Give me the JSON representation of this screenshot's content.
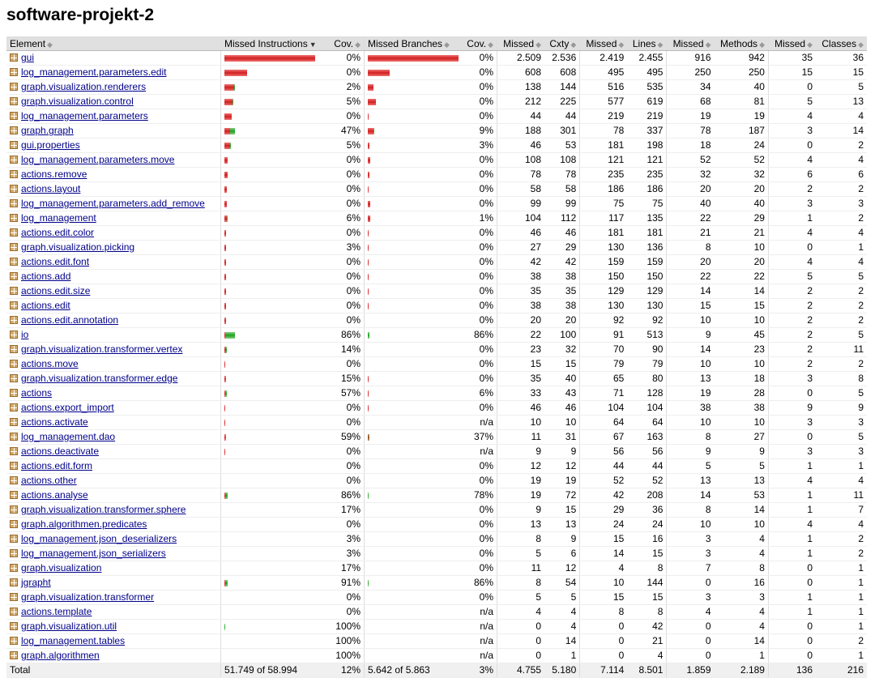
{
  "title": "software-projekt-2",
  "headers": [
    "Element",
    "Missed Instructions",
    "Cov.",
    "Missed Branches",
    "Cov.",
    "Missed",
    "Cxty",
    "Missed",
    "Lines",
    "Missed",
    "Methods",
    "Missed",
    "Classes"
  ],
  "rows": [
    {
      "name": "gui",
      "mi": [
        100,
        0
      ],
      "icov": "0%",
      "mb": [
        100,
        0
      ],
      "bcov": "0%",
      "mc": "2.509",
      "cx": "2.536",
      "ml": "2.419",
      "ln": "2.455",
      "mm": "916",
      "me": "942",
      "mcl": "35",
      "cl": "36"
    },
    {
      "name": "log_management.parameters.edit",
      "mi": [
        25,
        0
      ],
      "icov": "0%",
      "mb": [
        24,
        0
      ],
      "bcov": "0%",
      "mc": "608",
      "cx": "608",
      "ml": "495",
      "ln": "495",
      "mm": "250",
      "me": "250",
      "mcl": "15",
      "cl": "15"
    },
    {
      "name": "graph.visualization.renderers",
      "mi": [
        11,
        0.2
      ],
      "icov": "2%",
      "mb": [
        6,
        0
      ],
      "bcov": "0%",
      "mc": "138",
      "cx": "144",
      "ml": "516",
      "ln": "535",
      "mm": "34",
      "me": "40",
      "mcl": "0",
      "cl": "5"
    },
    {
      "name": "graph.visualization.control",
      "mi": [
        9,
        0.5
      ],
      "icov": "5%",
      "mb": [
        9,
        0
      ],
      "bcov": "0%",
      "mc": "212",
      "cx": "225",
      "ml": "577",
      "ln": "619",
      "mm": "68",
      "me": "81",
      "mcl": "5",
      "cl": "13"
    },
    {
      "name": "log_management.parameters",
      "mi": [
        8,
        0
      ],
      "icov": "0%",
      "mb": [
        1,
        0
      ],
      "bcov": "0%",
      "mc": "44",
      "cx": "44",
      "ml": "219",
      "ln": "219",
      "mm": "19",
      "me": "19",
      "mcl": "4",
      "cl": "4"
    },
    {
      "name": "graph.graph",
      "mi": [
        6,
        5
      ],
      "icov": "47%",
      "mb": [
        6,
        0.6
      ],
      "bcov": "9%",
      "mc": "188",
      "cx": "301",
      "ml": "78",
      "ln": "337",
      "mm": "78",
      "me": "187",
      "mcl": "3",
      "cl": "14"
    },
    {
      "name": "gui.properties",
      "mi": [
        6,
        0.3
      ],
      "icov": "5%",
      "mb": [
        2,
        0
      ],
      "bcov": "3%",
      "mc": "46",
      "cx": "53",
      "ml": "181",
      "ln": "198",
      "mm": "18",
      "me": "24",
      "mcl": "0",
      "cl": "2"
    },
    {
      "name": "log_management.parameters.move",
      "mi": [
        4,
        0
      ],
      "icov": "0%",
      "mb": [
        3,
        0
      ],
      "bcov": "0%",
      "mc": "108",
      "cx": "108",
      "ml": "121",
      "ln": "121",
      "mm": "52",
      "me": "52",
      "mcl": "4",
      "cl": "4"
    },
    {
      "name": "actions.remove",
      "mi": [
        4,
        0
      ],
      "icov": "0%",
      "mb": [
        2,
        0
      ],
      "bcov": "0%",
      "mc": "78",
      "cx": "78",
      "ml": "235",
      "ln": "235",
      "mm": "32",
      "me": "32",
      "mcl": "6",
      "cl": "6"
    },
    {
      "name": "actions.layout",
      "mi": [
        3,
        0
      ],
      "icov": "0%",
      "mb": [
        1,
        0
      ],
      "bcov": "0%",
      "mc": "58",
      "cx": "58",
      "ml": "186",
      "ln": "186",
      "mm": "20",
      "me": "20",
      "mcl": "2",
      "cl": "2"
    },
    {
      "name": "log_management.parameters.add_remove",
      "mi": [
        3,
        0
      ],
      "icov": "0%",
      "mb": [
        3,
        0
      ],
      "bcov": "0%",
      "mc": "99",
      "cx": "99",
      "ml": "75",
      "ln": "75",
      "mm": "40",
      "me": "40",
      "mcl": "3",
      "cl": "3"
    },
    {
      "name": "log_management",
      "mi": [
        3,
        0.2
      ],
      "icov": "6%",
      "mb": [
        3,
        0
      ],
      "bcov": "1%",
      "mc": "104",
      "cx": "112",
      "ml": "117",
      "ln": "135",
      "mm": "22",
      "me": "29",
      "mcl": "1",
      "cl": "2"
    },
    {
      "name": "actions.edit.color",
      "mi": [
        2,
        0
      ],
      "icov": "0%",
      "mb": [
        1,
        0
      ],
      "bcov": "0%",
      "mc": "46",
      "cx": "46",
      "ml": "181",
      "ln": "181",
      "mm": "21",
      "me": "21",
      "mcl": "4",
      "cl": "4"
    },
    {
      "name": "graph.visualization.picking",
      "mi": [
        2,
        0
      ],
      "icov": "3%",
      "mb": [
        1,
        0
      ],
      "bcov": "0%",
      "mc": "27",
      "cx": "29",
      "ml": "130",
      "ln": "136",
      "mm": "8",
      "me": "10",
      "mcl": "0",
      "cl": "1"
    },
    {
      "name": "actions.edit.font",
      "mi": [
        2,
        0
      ],
      "icov": "0%",
      "mb": [
        1,
        0
      ],
      "bcov": "0%",
      "mc": "42",
      "cx": "42",
      "ml": "159",
      "ln": "159",
      "mm": "20",
      "me": "20",
      "mcl": "4",
      "cl": "4"
    },
    {
      "name": "actions.add",
      "mi": [
        2,
        0
      ],
      "icov": "0%",
      "mb": [
        1,
        0
      ],
      "bcov": "0%",
      "mc": "38",
      "cx": "38",
      "ml": "150",
      "ln": "150",
      "mm": "22",
      "me": "22",
      "mcl": "5",
      "cl": "5"
    },
    {
      "name": "actions.edit.size",
      "mi": [
        1.5,
        0
      ],
      "icov": "0%",
      "mb": [
        1,
        0
      ],
      "bcov": "0%",
      "mc": "35",
      "cx": "35",
      "ml": "129",
      "ln": "129",
      "mm": "14",
      "me": "14",
      "mcl": "2",
      "cl": "2"
    },
    {
      "name": "actions.edit",
      "mi": [
        1.5,
        0
      ],
      "icov": "0%",
      "mb": [
        1,
        0
      ],
      "bcov": "0%",
      "mc": "38",
      "cx": "38",
      "ml": "130",
      "ln": "130",
      "mm": "15",
      "me": "15",
      "mcl": "2",
      "cl": "2"
    },
    {
      "name": "actions.edit.annotation",
      "mi": [
        1.5,
        0
      ],
      "icov": "0%",
      "mb": [
        0,
        0
      ],
      "bcov": "0%",
      "mc": "20",
      "cx": "20",
      "ml": "92",
      "ln": "92",
      "mm": "10",
      "me": "10",
      "mcl": "2",
      "cl": "2"
    },
    {
      "name": "io",
      "mi": [
        1,
        11
      ],
      "icov": "86%",
      "mb": [
        0,
        2
      ],
      "bcov": "86%",
      "mc": "22",
      "cx": "100",
      "ml": "91",
      "ln": "513",
      "mm": "9",
      "me": "45",
      "mcl": "2",
      "cl": "5"
    },
    {
      "name": "graph.visualization.transformer.vertex",
      "mi": [
        1.5,
        0.3
      ],
      "icov": "14%",
      "mb": [
        0,
        0
      ],
      "bcov": "0%",
      "mc": "23",
      "cx": "32",
      "ml": "70",
      "ln": "90",
      "mm": "14",
      "me": "23",
      "mcl": "2",
      "cl": "11"
    },
    {
      "name": "actions.move",
      "mi": [
        1,
        0
      ],
      "icov": "0%",
      "mb": [
        0,
        0
      ],
      "bcov": "0%",
      "mc": "15",
      "cx": "15",
      "ml": "79",
      "ln": "79",
      "mm": "10",
      "me": "10",
      "mcl": "2",
      "cl": "2"
    },
    {
      "name": "graph.visualization.transformer.edge",
      "mi": [
        1,
        0.2
      ],
      "icov": "15%",
      "mb": [
        1,
        0
      ],
      "bcov": "0%",
      "mc": "35",
      "cx": "40",
      "ml": "65",
      "ln": "80",
      "mm": "13",
      "me": "18",
      "mcl": "3",
      "cl": "8"
    },
    {
      "name": "actions",
      "mi": [
        0.5,
        2
      ],
      "icov": "57%",
      "mb": [
        1,
        0
      ],
      "bcov": "6%",
      "mc": "33",
      "cx": "43",
      "ml": "71",
      "ln": "128",
      "mm": "19",
      "me": "28",
      "mcl": "0",
      "cl": "5"
    },
    {
      "name": "actions.export_import",
      "mi": [
        1,
        0
      ],
      "icov": "0%",
      "mb": [
        1,
        0
      ],
      "bcov": "0%",
      "mc": "46",
      "cx": "46",
      "ml": "104",
      "ln": "104",
      "mm": "38",
      "me": "38",
      "mcl": "9",
      "cl": "9"
    },
    {
      "name": "actions.activate",
      "mi": [
        1,
        0
      ],
      "icov": "0%",
      "mb": null,
      "bcov": "n/a",
      "mc": "10",
      "cx": "10",
      "ml": "64",
      "ln": "64",
      "mm": "10",
      "me": "10",
      "mcl": "3",
      "cl": "3"
    },
    {
      "name": "log_management.dao",
      "mi": [
        0.5,
        1
      ],
      "icov": "59%",
      "mb": [
        0.5,
        0.5
      ],
      "bcov": "37%",
      "mc": "11",
      "cx": "31",
      "ml": "67",
      "ln": "163",
      "mm": "8",
      "me": "27",
      "mcl": "0",
      "cl": "5"
    },
    {
      "name": "actions.deactivate",
      "mi": [
        1,
        0
      ],
      "icov": "0%",
      "mb": null,
      "bcov": "n/a",
      "mc": "9",
      "cx": "9",
      "ml": "56",
      "ln": "56",
      "mm": "9",
      "me": "9",
      "mcl": "3",
      "cl": "3"
    },
    {
      "name": "actions.edit.form",
      "mi": [
        0,
        0
      ],
      "icov": "0%",
      "mb": [
        0,
        0
      ],
      "bcov": "0%",
      "mc": "12",
      "cx": "12",
      "ml": "44",
      "ln": "44",
      "mm": "5",
      "me": "5",
      "mcl": "1",
      "cl": "1"
    },
    {
      "name": "actions.other",
      "mi": [
        0,
        0
      ],
      "icov": "0%",
      "mb": [
        0,
        0
      ],
      "bcov": "0%",
      "mc": "19",
      "cx": "19",
      "ml": "52",
      "ln": "52",
      "mm": "13",
      "me": "13",
      "mcl": "4",
      "cl": "4"
    },
    {
      "name": "actions.analyse",
      "mi": [
        0.5,
        3
      ],
      "icov": "86%",
      "mb": [
        0,
        1
      ],
      "bcov": "78%",
      "mc": "19",
      "cx": "72",
      "ml": "42",
      "ln": "208",
      "mm": "14",
      "me": "53",
      "mcl": "1",
      "cl": "11"
    },
    {
      "name": "graph.visualization.transformer.sphere",
      "mi": [
        0,
        0
      ],
      "icov": "17%",
      "mb": [
        0,
        0
      ],
      "bcov": "0%",
      "mc": "9",
      "cx": "15",
      "ml": "29",
      "ln": "36",
      "mm": "8",
      "me": "14",
      "mcl": "1",
      "cl": "7"
    },
    {
      "name": "graph.algorithmen.predicates",
      "mi": [
        0,
        0
      ],
      "icov": "0%",
      "mb": [
        0,
        0
      ],
      "bcov": "0%",
      "mc": "13",
      "cx": "13",
      "ml": "24",
      "ln": "24",
      "mm": "10",
      "me": "10",
      "mcl": "4",
      "cl": "4"
    },
    {
      "name": "log_management.json_deserializers",
      "mi": [
        0,
        0
      ],
      "icov": "3%",
      "mb": [
        0,
        0
      ],
      "bcov": "0%",
      "mc": "8",
      "cx": "9",
      "ml": "15",
      "ln": "16",
      "mm": "3",
      "me": "4",
      "mcl": "1",
      "cl": "2"
    },
    {
      "name": "log_management.json_serializers",
      "mi": [
        0,
        0
      ],
      "icov": "3%",
      "mb": [
        0,
        0
      ],
      "bcov": "0%",
      "mc": "5",
      "cx": "6",
      "ml": "14",
      "ln": "15",
      "mm": "3",
      "me": "4",
      "mcl": "1",
      "cl": "2"
    },
    {
      "name": "graph.visualization",
      "mi": [
        0,
        0
      ],
      "icov": "17%",
      "mb": [
        0,
        0
      ],
      "bcov": "0%",
      "mc": "11",
      "cx": "12",
      "ml": "4",
      "ln": "8",
      "mm": "7",
      "me": "8",
      "mcl": "0",
      "cl": "1"
    },
    {
      "name": "jgrapht",
      "mi": [
        0.3,
        3
      ],
      "icov": "91%",
      "mb": [
        0,
        1
      ],
      "bcov": "86%",
      "mc": "8",
      "cx": "54",
      "ml": "10",
      "ln": "144",
      "mm": "0",
      "me": "16",
      "mcl": "0",
      "cl": "1"
    },
    {
      "name": "graph.visualization.transformer",
      "mi": [
        0,
        0
      ],
      "icov": "0%",
      "mb": [
        0,
        0
      ],
      "bcov": "0%",
      "mc": "5",
      "cx": "5",
      "ml": "15",
      "ln": "15",
      "mm": "3",
      "me": "3",
      "mcl": "1",
      "cl": "1"
    },
    {
      "name": "actions.template",
      "mi": [
        0,
        0
      ],
      "icov": "0%",
      "mb": null,
      "bcov": "n/a",
      "mc": "4",
      "cx": "4",
      "ml": "8",
      "ln": "8",
      "mm": "4",
      "me": "4",
      "mcl": "1",
      "cl": "1"
    },
    {
      "name": "graph.visualization.util",
      "mi": [
        0,
        1
      ],
      "icov": "100%",
      "mb": null,
      "bcov": "n/a",
      "mc": "0",
      "cx": "4",
      "ml": "0",
      "ln": "42",
      "mm": "0",
      "me": "4",
      "mcl": "0",
      "cl": "1"
    },
    {
      "name": "log_management.tables",
      "mi": [
        0,
        0
      ],
      "icov": "100%",
      "mb": null,
      "bcov": "n/a",
      "mc": "0",
      "cx": "14",
      "ml": "0",
      "ln": "21",
      "mm": "0",
      "me": "14",
      "mcl": "0",
      "cl": "2"
    },
    {
      "name": "graph.algorithmen",
      "mi": [
        0,
        0
      ],
      "icov": "100%",
      "mb": null,
      "bcov": "n/a",
      "mc": "0",
      "cx": "1",
      "ml": "0",
      "ln": "4",
      "mm": "0",
      "me": "1",
      "mcl": "0",
      "cl": "1"
    }
  ],
  "total": {
    "label": "Total",
    "mi": "51.749 of 58.994",
    "icov": "12%",
    "mb": "5.642 of 5.863",
    "bcov": "3%",
    "mc": "4.755",
    "cx": "5.180",
    "ml": "7.114",
    "ln": "8.501",
    "mm": "1.859",
    "me": "2.189",
    "mcl": "136",
    "cl": "216"
  }
}
